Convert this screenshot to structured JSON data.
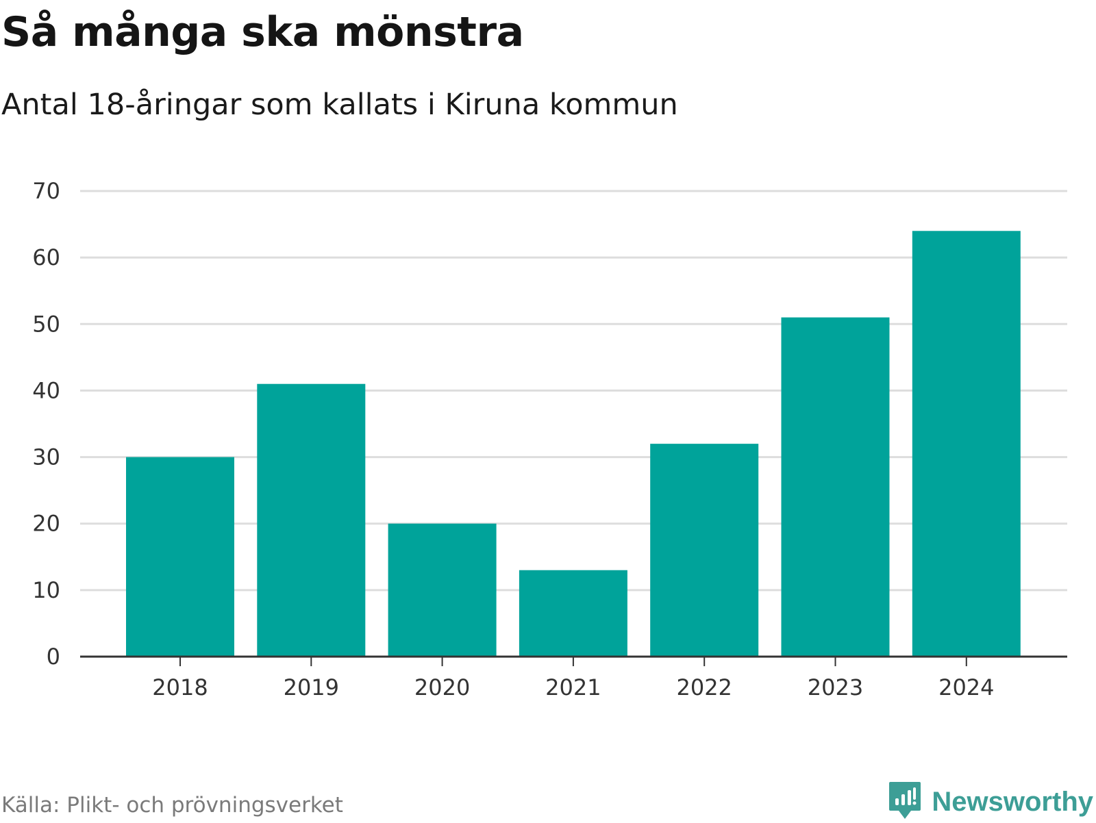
{
  "header": {
    "title": "Så många ska mönstra",
    "subtitle": "Antal 18-åringar som kallats i Kiruna kommun"
  },
  "footer": {
    "source": "Källa: Plikt- och prövningsverket",
    "brand": "Newsworthy",
    "brand_icon": "newsworthy-logo-icon"
  },
  "colors": {
    "bar": "#00a39a",
    "grid": "#dddddd",
    "axis": "#333333",
    "brand": "#3d9e96"
  },
  "chart_data": {
    "type": "bar",
    "categories": [
      "2018",
      "2019",
      "2020",
      "2021",
      "2022",
      "2023",
      "2024"
    ],
    "values": [
      30,
      41,
      20,
      13,
      32,
      51,
      64
    ],
    "title": "Så många ska mönstra",
    "subtitle": "Antal 18-åringar som kallats i Kiruna kommun",
    "xlabel": "",
    "ylabel": "",
    "ylim": [
      0,
      70
    ],
    "yticks": [
      "0",
      "10",
      "20",
      "30",
      "40",
      "50",
      "60",
      "70"
    ],
    "grid": true,
    "legend": "none"
  }
}
